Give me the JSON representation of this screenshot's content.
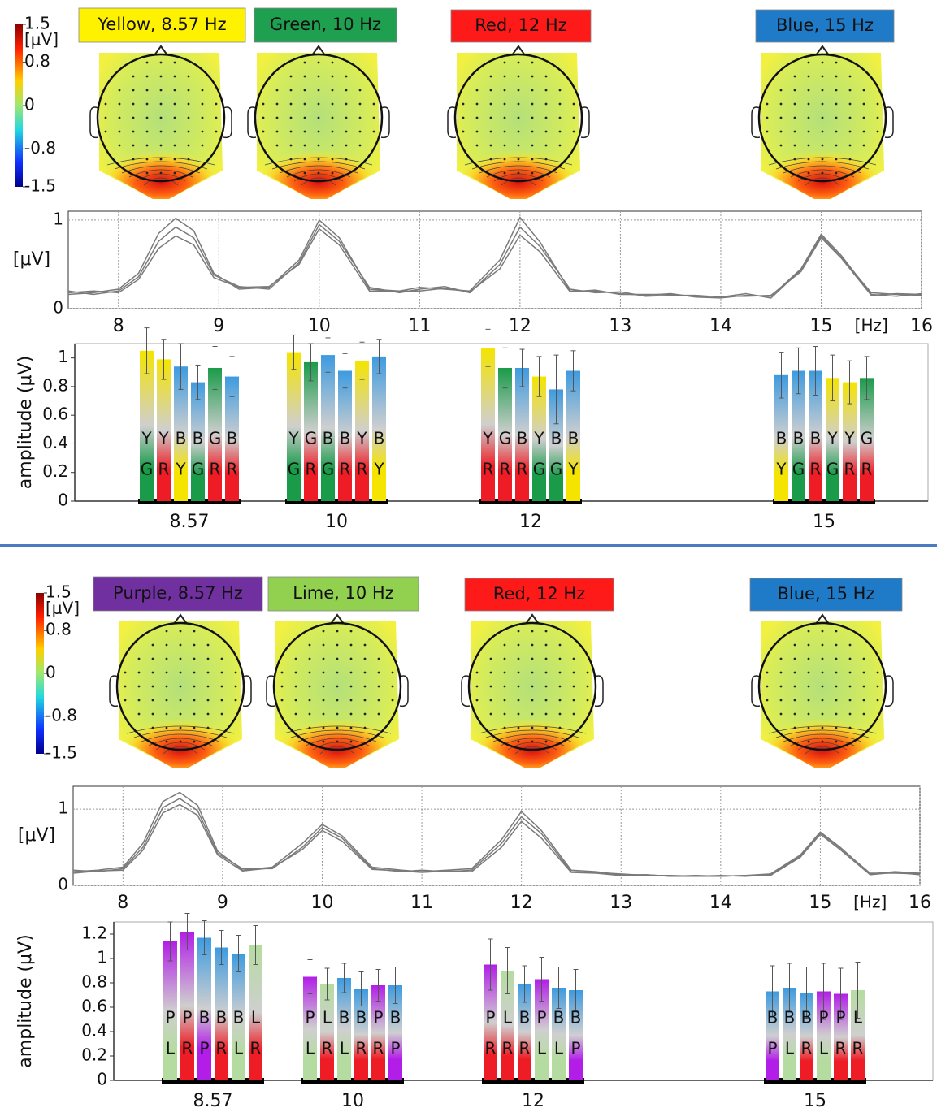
{
  "panels": [
    {
      "colorbar": {
        "clim": [
          -1.5,
          1.5
        ],
        "ticks": [
          1.5,
          0.8,
          0,
          -0.8,
          -1.5
        ],
        "unit": "[μV]"
      },
      "conditions": [
        {
          "label": "Yellow, 8.57 Hz",
          "color": "#fff200"
        },
        {
          "label": "Green, 10 Hz",
          "color": "#1ea050"
        },
        {
          "label": "Red, 12 Hz",
          "color": "#ff1a1a"
        },
        {
          "label": "Blue, 15 Hz",
          "color": "#1f7ac8"
        }
      ]
    },
    {
      "colorbar": {
        "clim": [
          -1.5,
          1.5
        ],
        "ticks": [
          1.5,
          0.8,
          0,
          -0.8,
          -1.5
        ],
        "unit": "[μV]"
      },
      "conditions": [
        {
          "label": "Purple, 8.57 Hz",
          "color": "#7030a0"
        },
        {
          "label": "Lime, 10 Hz",
          "color": "#92d050"
        },
        {
          "label": "Red, 12 Hz",
          "color": "#ff1a1a"
        },
        {
          "label": "Blue, 15 Hz",
          "color": "#1f7ac8"
        }
      ]
    }
  ],
  "chart_data": [
    {
      "type": "line",
      "ylabel": "[μV]",
      "x_unit": "[Hz]",
      "xlim": [
        7.5,
        16
      ],
      "ylim": [
        0,
        1.1
      ],
      "xticks": [
        8,
        9,
        10,
        11,
        12,
        13,
        14,
        15,
        16
      ],
      "yticks": [
        0,
        1
      ],
      "grid": true,
      "x": [
        7.5,
        7.75,
        8,
        8.2,
        8.4,
        8.57,
        8.75,
        8.95,
        9.2,
        9.5,
        9.8,
        10,
        10.2,
        10.5,
        10.8,
        11,
        11.25,
        11.5,
        11.8,
        12,
        12.2,
        12.5,
        12.75,
        13,
        13.25,
        13.5,
        13.75,
        14,
        14.25,
        14.5,
        14.8,
        15,
        15.2,
        15.5,
        15.75,
        16
      ],
      "series": [
        {
          "color": "#7a7a7a",
          "values": [
            0.16,
            0.18,
            0.22,
            0.4,
            0.85,
            1.02,
            0.88,
            0.4,
            0.22,
            0.24,
            0.55,
            1.0,
            0.8,
            0.22,
            0.2,
            0.24,
            0.22,
            0.2,
            0.55,
            1.03,
            0.75,
            0.2,
            0.2,
            0.17,
            0.15,
            0.17,
            0.13,
            0.12,
            0.15,
            0.14,
            0.45,
            0.84,
            0.6,
            0.16,
            0.14,
            0.17
          ]
        },
        {
          "color": "#7a7a7a",
          "values": [
            0.2,
            0.16,
            0.2,
            0.36,
            0.76,
            0.92,
            0.8,
            0.38,
            0.25,
            0.22,
            0.52,
            0.95,
            0.76,
            0.24,
            0.18,
            0.22,
            0.25,
            0.18,
            0.5,
            0.92,
            0.7,
            0.22,
            0.18,
            0.19,
            0.14,
            0.15,
            0.15,
            0.13,
            0.17,
            0.12,
            0.44,
            0.82,
            0.58,
            0.18,
            0.16,
            0.15
          ]
        },
        {
          "color": "#7a7a7a",
          "values": [
            0.18,
            0.2,
            0.18,
            0.33,
            0.68,
            0.82,
            0.72,
            0.35,
            0.24,
            0.25,
            0.5,
            0.9,
            0.72,
            0.2,
            0.2,
            0.2,
            0.23,
            0.19,
            0.45,
            0.83,
            0.64,
            0.19,
            0.21,
            0.16,
            0.16,
            0.16,
            0.14,
            0.14,
            0.14,
            0.15,
            0.42,
            0.8,
            0.57,
            0.15,
            0.17,
            0.16
          ]
        }
      ]
    },
    {
      "type": "bar",
      "ylabel": "amplitude (μV)",
      "ylim": [
        0,
        1.1
      ],
      "yticks": [
        0,
        0.2,
        0.4,
        0.6,
        0.8,
        1
      ],
      "letter_colors": {
        "Y": "#f5e400",
        "G": "#1a9b4a",
        "R": "#ee1c24",
        "B": "#3d9be0"
      },
      "categories": [
        "8.57",
        "10",
        "12",
        "15"
      ],
      "groups": [
        [
          {
            "top": "Y",
            "bottom": "G",
            "value": 1.05,
            "error": 0.16
          },
          {
            "top": "Y",
            "bottom": "R",
            "value": 0.99,
            "error": 0.14
          },
          {
            "top": "B",
            "bottom": "Y",
            "value": 0.94,
            "error": 0.16
          },
          {
            "top": "B",
            "bottom": "G",
            "value": 0.83,
            "error": 0.12
          },
          {
            "top": "G",
            "bottom": "R",
            "value": 0.93,
            "error": 0.15
          },
          {
            "top": "B",
            "bottom": "R",
            "value": 0.87,
            "error": 0.14
          }
        ],
        [
          {
            "top": "Y",
            "bottom": "G",
            "value": 1.04,
            "error": 0.12
          },
          {
            "top": "G",
            "bottom": "R",
            "value": 0.97,
            "error": 0.13
          },
          {
            "top": "B",
            "bottom": "G",
            "value": 1.02,
            "error": 0.12
          },
          {
            "top": "B",
            "bottom": "R",
            "value": 0.91,
            "error": 0.12
          },
          {
            "top": "Y",
            "bottom": "R",
            "value": 0.98,
            "error": 0.13
          },
          {
            "top": "B",
            "bottom": "Y",
            "value": 1.01,
            "error": 0.12
          }
        ],
        [
          {
            "top": "Y",
            "bottom": "R",
            "value": 1.07,
            "error": 0.13
          },
          {
            "top": "G",
            "bottom": "R",
            "value": 0.93,
            "error": 0.14
          },
          {
            "top": "B",
            "bottom": "R",
            "value": 0.93,
            "error": 0.13
          },
          {
            "top": "Y",
            "bottom": "G",
            "value": 0.87,
            "error": 0.14
          },
          {
            "top": "B",
            "bottom": "G",
            "value": 0.78,
            "error": 0.24
          },
          {
            "top": "B",
            "bottom": "Y",
            "value": 0.91,
            "error": 0.14
          }
        ],
        [
          {
            "top": "B",
            "bottom": "Y",
            "value": 0.88,
            "error": 0.16
          },
          {
            "top": "B",
            "bottom": "G",
            "value": 0.91,
            "error": 0.16
          },
          {
            "top": "B",
            "bottom": "R",
            "value": 0.91,
            "error": 0.17
          },
          {
            "top": "Y",
            "bottom": "G",
            "value": 0.86,
            "error": 0.16
          },
          {
            "top": "Y",
            "bottom": "R",
            "value": 0.83,
            "error": 0.15
          },
          {
            "top": "G",
            "bottom": "R",
            "value": 0.86,
            "error": 0.15
          }
        ]
      ]
    },
    {
      "type": "line",
      "ylabel": "[μV]",
      "x_unit": "[Hz]",
      "xlim": [
        7.5,
        16
      ],
      "ylim": [
        0,
        1.3
      ],
      "xticks": [
        8,
        9,
        10,
        11,
        12,
        13,
        14,
        15,
        16
      ],
      "yticks": [
        0,
        1
      ],
      "grid": true,
      "x": [
        7.5,
        7.75,
        8,
        8.2,
        8.4,
        8.57,
        8.75,
        8.95,
        9.2,
        9.5,
        9.8,
        10,
        10.2,
        10.5,
        10.8,
        11,
        11.25,
        11.5,
        11.8,
        12,
        12.2,
        12.5,
        12.75,
        13,
        13.25,
        13.5,
        13.75,
        14,
        14.25,
        14.5,
        14.8,
        15,
        15.2,
        15.5,
        15.75,
        16
      ],
      "series": [
        {
          "color": "#7a7a7a",
          "values": [
            0.18,
            0.2,
            0.24,
            0.55,
            1.1,
            1.22,
            1.05,
            0.45,
            0.2,
            0.24,
            0.55,
            0.8,
            0.65,
            0.24,
            0.2,
            0.18,
            0.2,
            0.22,
            0.6,
            0.97,
            0.72,
            0.2,
            0.18,
            0.14,
            0.14,
            0.12,
            0.13,
            0.12,
            0.13,
            0.15,
            0.4,
            0.7,
            0.5,
            0.15,
            0.18,
            0.16
          ]
        },
        {
          "color": "#7a7a7a",
          "values": [
            0.2,
            0.18,
            0.22,
            0.5,
            1.02,
            1.14,
            0.98,
            0.42,
            0.22,
            0.22,
            0.5,
            0.76,
            0.62,
            0.22,
            0.18,
            0.2,
            0.18,
            0.2,
            0.55,
            0.9,
            0.68,
            0.18,
            0.17,
            0.15,
            0.13,
            0.13,
            0.12,
            0.13,
            0.12,
            0.14,
            0.38,
            0.69,
            0.49,
            0.16,
            0.16,
            0.15
          ]
        },
        {
          "color": "#7a7a7a",
          "values": [
            0.16,
            0.19,
            0.2,
            0.46,
            0.95,
            1.06,
            0.92,
            0.4,
            0.19,
            0.23,
            0.47,
            0.72,
            0.58,
            0.21,
            0.19,
            0.17,
            0.19,
            0.18,
            0.5,
            0.84,
            0.62,
            0.17,
            0.16,
            0.13,
            0.14,
            0.12,
            0.12,
            0.12,
            0.13,
            0.13,
            0.37,
            0.67,
            0.47,
            0.14,
            0.17,
            0.14
          ]
        }
      ]
    },
    {
      "type": "bar",
      "ylabel": "amplitude (μV)",
      "ylim": [
        0,
        1.3
      ],
      "yticks": [
        0,
        0.2,
        0.4,
        0.6,
        0.8,
        1,
        1.2
      ],
      "letter_colors": {
        "P": "#b21ee8",
        "L": "#b5dca0",
        "R": "#ee1c24",
        "B": "#3d9be0"
      },
      "categories": [
        "8.57",
        "10",
        "12",
        "15"
      ],
      "groups": [
        [
          {
            "top": "P",
            "bottom": "L",
            "value": 1.14,
            "error": 0.16
          },
          {
            "top": "P",
            "bottom": "R",
            "value": 1.22,
            "error": 0.15
          },
          {
            "top": "B",
            "bottom": "P",
            "value": 1.17,
            "error": 0.14
          },
          {
            "top": "B",
            "bottom": "R",
            "value": 1.09,
            "error": 0.14
          },
          {
            "top": "B",
            "bottom": "L",
            "value": 1.04,
            "error": 0.15
          },
          {
            "top": "L",
            "bottom": "R",
            "value": 1.11,
            "error": 0.16
          }
        ],
        [
          {
            "top": "P",
            "bottom": "L",
            "value": 0.85,
            "error": 0.14
          },
          {
            "top": "L",
            "bottom": "R",
            "value": 0.79,
            "error": 0.13
          },
          {
            "top": "B",
            "bottom": "L",
            "value": 0.84,
            "error": 0.12
          },
          {
            "top": "B",
            "bottom": "R",
            "value": 0.75,
            "error": 0.14
          },
          {
            "top": "P",
            "bottom": "R",
            "value": 0.78,
            "error": 0.13
          },
          {
            "top": "B",
            "bottom": "P",
            "value": 0.78,
            "error": 0.15
          }
        ],
        [
          {
            "top": "P",
            "bottom": "R",
            "value": 0.95,
            "error": 0.21
          },
          {
            "top": "L",
            "bottom": "R",
            "value": 0.9,
            "error": 0.19
          },
          {
            "top": "B",
            "bottom": "R",
            "value": 0.79,
            "error": 0.15
          },
          {
            "top": "P",
            "bottom": "L",
            "value": 0.83,
            "error": 0.18
          },
          {
            "top": "B",
            "bottom": "L",
            "value": 0.76,
            "error": 0.17
          },
          {
            "top": "B",
            "bottom": "P",
            "value": 0.74,
            "error": 0.17
          }
        ],
        [
          {
            "top": "B",
            "bottom": "P",
            "value": 0.73,
            "error": 0.21
          },
          {
            "top": "B",
            "bottom": "L",
            "value": 0.76,
            "error": 0.2
          },
          {
            "top": "B",
            "bottom": "R",
            "value": 0.72,
            "error": 0.21
          },
          {
            "top": "P",
            "bottom": "L",
            "value": 0.73,
            "error": 0.23
          },
          {
            "top": "P",
            "bottom": "R",
            "value": 0.71,
            "error": 0.21
          },
          {
            "top": "L",
            "bottom": "R",
            "value": 0.74,
            "error": 0.23
          }
        ]
      ]
    }
  ]
}
